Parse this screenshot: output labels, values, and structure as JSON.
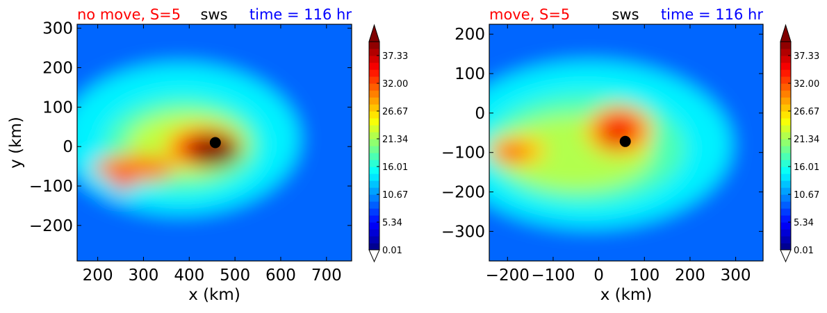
{
  "chart_data": [
    {
      "type": "heatmap",
      "title_left": "no move, S=5",
      "title_center": "sws",
      "title_right": "time = 116 hr",
      "title_colors": {
        "left": "#ff0000",
        "center": "#000000",
        "right": "#0000ff"
      },
      "xlabel": "x (km)",
      "ylabel": "y (km)",
      "xlim": [
        155,
        755
      ],
      "ylim": [
        -290,
        310
      ],
      "xticks": [
        200,
        300,
        400,
        500,
        600,
        700
      ],
      "yticks": [
        -200,
        -100,
        0,
        100,
        200,
        300
      ],
      "storm_center": {
        "x": 457,
        "y": 10
      },
      "features": [
        {
          "name": "far field",
          "value": 9
        },
        {
          "name": "outer ring",
          "value": 14.5,
          "cx": 380,
          "cy": 20,
          "rx": 260,
          "ry": 190
        },
        {
          "name": "middle ring",
          "value": 18,
          "cx": 385,
          "cy": 5,
          "rx": 170,
          "ry": 120
        },
        {
          "name": "band",
          "value": 22.5,
          "cx": 395,
          "cy": 5,
          "rx": 130,
          "ry": 80
        },
        {
          "name": "inner",
          "value": 27.5,
          "cx": 430,
          "cy": 0,
          "rx": 85,
          "ry": 55
        },
        {
          "name": "rainband tail",
          "value": 30,
          "cx": 280,
          "cy": -55,
          "rx": 90,
          "ry": 35
        },
        {
          "name": "tail core",
          "value": 34,
          "cx": 255,
          "cy": -90,
          "rx": 22,
          "ry": 20
        },
        {
          "name": "eyewall",
          "value": 34.5,
          "cx": 440,
          "cy": -5,
          "rx": 70,
          "ry": 45
        },
        {
          "name": "eyewall max",
          "value": 40,
          "cx": 455,
          "cy": -10,
          "rx": 55,
          "ry": 40
        }
      ]
    },
    {
      "type": "heatmap",
      "title_left": "move, S=5",
      "title_center": "sws",
      "title_right": "time = 116 hr",
      "title_colors": {
        "left": "#ff0000",
        "center": "#000000",
        "right": "#0000ff"
      },
      "xlabel": "x (km)",
      "ylabel": "",
      "xlim": [
        -240,
        360
      ],
      "ylim": [
        -375,
        225
      ],
      "xticks": [
        -200,
        -100,
        0,
        100,
        200,
        300
      ],
      "yticks": [
        -300,
        -200,
        -100,
        0,
        100,
        200
      ],
      "storm_center": {
        "x": 58,
        "y": -72
      },
      "features": [
        {
          "name": "far field",
          "value": 9
        },
        {
          "name": "outer ring",
          "value": 14.5,
          "cx": -20,
          "cy": -80,
          "rx": 310,
          "ry": 210
        },
        {
          "name": "middle ring",
          "value": 18,
          "cx": -30,
          "cy": -90,
          "rx": 220,
          "ry": 140
        },
        {
          "name": "yellow band",
          "value": 22,
          "cx": -50,
          "cy": -100,
          "rx": 170,
          "ry": 95
        },
        {
          "name": "west rainband",
          "value": 27,
          "cx": -180,
          "cy": -95,
          "rx": 65,
          "ry": 40
        },
        {
          "name": "core",
          "value": 27.5,
          "cx": 45,
          "cy": -45,
          "rx": 75,
          "ry": 65
        },
        {
          "name": "west core",
          "value": 33.5,
          "cx": -190,
          "cy": -100,
          "rx": 35,
          "ry": 20
        },
        {
          "name": "eyewall",
          "value": 33,
          "cx": 45,
          "cy": -40,
          "rx": 50,
          "ry": 45
        },
        {
          "name": "eyewall max",
          "value": 36.5,
          "cx": 35,
          "cy": -68,
          "rx": 30,
          "ry": 18
        }
      ]
    }
  ],
  "colorbar": {
    "vmin": 0.01,
    "vmax": 40,
    "levels": 30,
    "tick_labels": [
      "0.01",
      "5.34",
      "10.67",
      "16.01",
      "21.34",
      "26.67",
      "32.00",
      "37.33"
    ],
    "extend": "both",
    "over_color": "#800000",
    "under_color": "#ffffff"
  },
  "colors": {
    "marker": "#000000",
    "axes": "#000000"
  }
}
